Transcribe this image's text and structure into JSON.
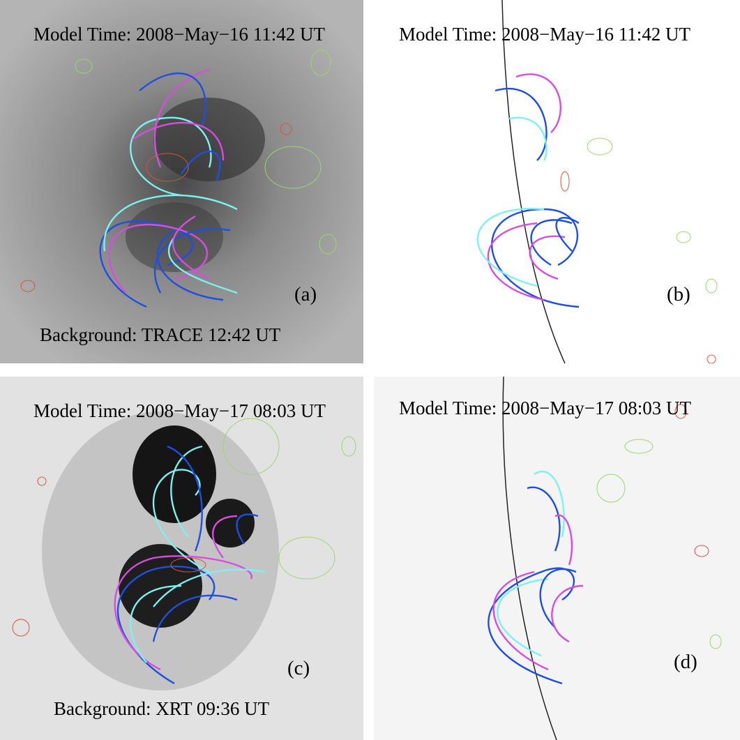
{
  "panels": [
    {
      "id": "a",
      "title": "Model Time: 2008−May−16 11:42 UT",
      "label": "(a)",
      "background": "Background: TRACE 12:42 UT"
    },
    {
      "id": "b",
      "title": "Model Time: 2008−May−16 11:42 UT",
      "label": "(b)"
    },
    {
      "id": "c",
      "title": "Model Time: 2008−May−17 08:03 UT",
      "label": "(c)",
      "background": "Background: XRT 09:36 UT"
    },
    {
      "id": "d",
      "title": "Model Time: 2008−May−17 08:03 UT",
      "label": "(d)"
    }
  ],
  "colors": {
    "field_line_blue": "#1f4fe0",
    "field_line_magenta": "#d64ee0",
    "field_line_cyan": "#7ff0f0",
    "contour_green": "#9ad86a",
    "contour_red": "#d8553a",
    "limb": "#222222"
  }
}
